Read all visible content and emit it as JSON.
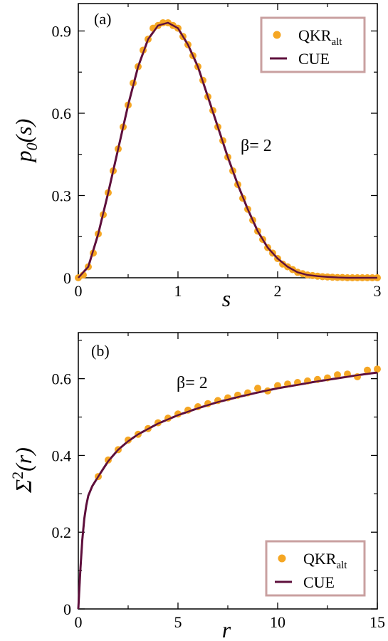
{
  "chart_data": [
    {
      "type": "scatter",
      "panel_label": "(a)",
      "xlabel": "s",
      "ylabel": "p",
      "ylabel_sub": "0",
      "ylabel_arg": "(s)",
      "xlim": [
        0,
        3
      ],
      "ylim": [
        0,
        1.0
      ],
      "xticks": [
        0,
        1,
        2,
        3
      ],
      "xtick_labels": [
        "0",
        "1",
        "2",
        "3"
      ],
      "yticks": [
        0,
        0.3,
        0.6,
        0.9
      ],
      "ytick_labels": [
        "0",
        "0.3",
        "0.6",
        "0.9"
      ],
      "annotation": "β= 2",
      "legend_placement": "top-right",
      "series": [
        {
          "name": "QKR",
          "name_sub": "alt",
          "kind": "points",
          "color": "#F5A623",
          "x": [
            0.0,
            0.05,
            0.1,
            0.15,
            0.2,
            0.25,
            0.3,
            0.35,
            0.4,
            0.45,
            0.5,
            0.55,
            0.6,
            0.65,
            0.7,
            0.75,
            0.8,
            0.85,
            0.9,
            0.95,
            1.0,
            1.05,
            1.1,
            1.15,
            1.2,
            1.25,
            1.3,
            1.35,
            1.4,
            1.45,
            1.5,
            1.55,
            1.6,
            1.65,
            1.7,
            1.75,
            1.8,
            1.85,
            1.9,
            1.95,
            2.0,
            2.05,
            2.1,
            2.15,
            2.2,
            2.25,
            2.3,
            2.35,
            2.4,
            2.45,
            2.5,
            2.55,
            2.6,
            2.65,
            2.7,
            2.75,
            2.8,
            2.85,
            2.9,
            2.95,
            3.0
          ],
          "y": [
            0.0,
            0.01,
            0.04,
            0.09,
            0.16,
            0.23,
            0.31,
            0.39,
            0.47,
            0.55,
            0.63,
            0.71,
            0.77,
            0.83,
            0.87,
            0.91,
            0.92,
            0.93,
            0.93,
            0.92,
            0.91,
            0.88,
            0.85,
            0.81,
            0.77,
            0.72,
            0.66,
            0.61,
            0.55,
            0.5,
            0.44,
            0.39,
            0.34,
            0.29,
            0.25,
            0.21,
            0.17,
            0.14,
            0.11,
            0.09,
            0.07,
            0.05,
            0.04,
            0.03,
            0.02,
            0.015,
            0.01,
            0.008,
            0.006,
            0.004,
            0.003,
            0.002,
            0.001,
            0.001,
            0.0,
            0.0,
            0.0,
            0.0,
            0.0,
            0.0,
            0.0
          ]
        },
        {
          "name": "CUE",
          "kind": "line",
          "color": "#5E0F3C",
          "x": [
            0.0,
            0.1,
            0.2,
            0.3,
            0.4,
            0.5,
            0.6,
            0.7,
            0.8,
            0.9,
            1.0,
            1.1,
            1.2,
            1.3,
            1.4,
            1.5,
            1.6,
            1.7,
            1.8,
            1.9,
            2.0,
            2.1,
            2.2,
            2.3,
            2.4,
            2.5,
            2.6,
            2.7,
            2.8,
            2.9,
            3.0
          ],
          "y": [
            0.0,
            0.04,
            0.16,
            0.31,
            0.47,
            0.63,
            0.77,
            0.87,
            0.92,
            0.93,
            0.91,
            0.85,
            0.77,
            0.66,
            0.55,
            0.44,
            0.34,
            0.25,
            0.17,
            0.11,
            0.07,
            0.04,
            0.02,
            0.01,
            0.006,
            0.003,
            0.001,
            0.0,
            0.0,
            0.0,
            0.0
          ]
        }
      ]
    },
    {
      "type": "scatter",
      "panel_label": "(b)",
      "xlabel": "r",
      "ylabel": "Σ",
      "ylabel_sup": "2",
      "ylabel_arg": "(r)",
      "xlim": [
        0,
        15
      ],
      "ylim": [
        0,
        0.72
      ],
      "xticks": [
        0,
        5,
        10,
        15
      ],
      "xtick_labels": [
        "0",
        "5",
        "10",
        "15"
      ],
      "yticks": [
        0,
        0.2,
        0.4,
        0.6
      ],
      "ytick_labels": [
        "0",
        "0.2",
        "0.4",
        "0.6"
      ],
      "annotation": "β= 2",
      "legend_placement": "bottom-right",
      "series": [
        {
          "name": "QKR",
          "name_sub": "alt",
          "kind": "points",
          "color": "#F5A623",
          "x": [
            1.0,
            1.5,
            2.0,
            2.5,
            3.0,
            3.5,
            4.0,
            4.5,
            5.0,
            5.5,
            6.0,
            6.5,
            7.0,
            7.5,
            8.0,
            8.5,
            9.0,
            9.5,
            10.0,
            10.5,
            11.0,
            11.5,
            12.0,
            12.5,
            13.0,
            13.5,
            14.0,
            14.5,
            15.0
          ],
          "y": [
            0.345,
            0.388,
            0.415,
            0.44,
            0.455,
            0.47,
            0.485,
            0.497,
            0.508,
            0.518,
            0.527,
            0.535,
            0.543,
            0.55,
            0.557,
            0.563,
            0.575,
            0.568,
            0.582,
            0.586,
            0.59,
            0.594,
            0.598,
            0.602,
            0.61,
            0.612,
            0.605,
            0.622,
            0.625
          ]
        },
        {
          "name": "CUE",
          "kind": "line",
          "color": "#5E0F3C",
          "x": [
            0.0,
            0.05,
            0.1,
            0.2,
            0.3,
            0.4,
            0.5,
            0.7,
            1.0,
            1.5,
            2.0,
            2.5,
            3.0,
            4.0,
            5.0,
            6.0,
            7.0,
            8.0,
            9.0,
            10.0,
            11.0,
            12.0,
            13.0,
            14.0,
            15.0
          ],
          "y": [
            0.0,
            0.05,
            0.1,
            0.18,
            0.235,
            0.27,
            0.295,
            0.32,
            0.345,
            0.385,
            0.415,
            0.437,
            0.455,
            0.483,
            0.505,
            0.523,
            0.539,
            0.552,
            0.564,
            0.575,
            0.584,
            0.593,
            0.601,
            0.609,
            0.616
          ]
        }
      ]
    }
  ]
}
